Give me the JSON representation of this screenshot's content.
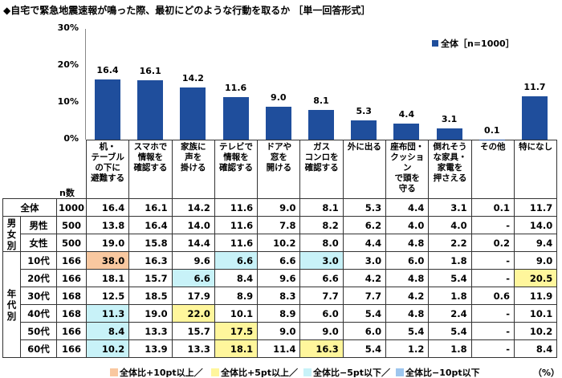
{
  "title": "◆自宅で緊急地震速報が鳴った際、最初にどのような行動を取るか ［単一回答形式］",
  "chart_data": {
    "type": "bar",
    "categories": [
      "机・テーブルの下に避難する",
      "スマホで情報を確認する",
      "家族に声を掛ける",
      "テレビで情報を確認する",
      "ドアや窓を開ける",
      "ガスコンロを確認する",
      "外に出る",
      "座布団・クッションで頭を守る",
      "倒れそうな家具・家電を押さえる",
      "その他",
      "特になし"
    ],
    "series": [
      {
        "name": "全体［n=1000］",
        "values": [
          16.4,
          16.1,
          14.2,
          11.6,
          9.0,
          8.1,
          5.3,
          4.4,
          3.1,
          0.1,
          11.7
        ],
        "color": "#1f4e9c"
      }
    ],
    "ylim": [
      0,
      30
    ],
    "yticks": [
      "0%",
      "10%",
      "20%",
      "30%"
    ],
    "ytick_values": [
      0,
      10,
      20,
      30
    ],
    "legend_position": "top-right",
    "grid": false
  },
  "table": {
    "n_header": "n数",
    "headers": [
      "机・\nテーブル\nの下に\n避難する",
      "スマホで\n情報を\n確認する",
      "家族に\n声を\n掛ける",
      "テレビで\n情報を\n確認する",
      "ドアや\n窓を\n開ける",
      "ガス\nコンロを\n確認する",
      "外に出る",
      "座布団・\nクッション\nで頭を\n守る",
      "倒れそう\nな家具・\n家電を\n押さえる",
      "その他",
      "特になし"
    ],
    "groups": [
      {
        "label": "男\n女\n別"
      },
      {
        "label": "年\n代\n別"
      }
    ],
    "rows": [
      {
        "label": "全体",
        "n": "1000",
        "values": [
          "16.4",
          "16.1",
          "14.2",
          "11.6",
          "9.0",
          "8.1",
          "5.3",
          "4.4",
          "3.1",
          "0.1",
          "11.7"
        ],
        "hl": [
          "",
          "",
          "",
          "",
          "",
          "",
          "",
          "",
          "",
          "",
          ""
        ]
      },
      {
        "label": "男性",
        "n": "500",
        "values": [
          "13.8",
          "16.4",
          "14.0",
          "11.6",
          "7.8",
          "8.2",
          "6.2",
          "4.0",
          "4.0",
          "-",
          "14.0"
        ],
        "hl": [
          "",
          "",
          "",
          "",
          "",
          "",
          "",
          "",
          "",
          "",
          ""
        ]
      },
      {
        "label": "女性",
        "n": "500",
        "values": [
          "19.0",
          "15.8",
          "14.4",
          "11.6",
          "10.2",
          "8.0",
          "4.4",
          "4.8",
          "2.2",
          "0.2",
          "9.4"
        ],
        "hl": [
          "",
          "",
          "",
          "",
          "",
          "",
          "",
          "",
          "",
          "",
          ""
        ]
      },
      {
        "label": "10代",
        "n": "166",
        "values": [
          "38.0",
          "16.3",
          "9.6",
          "6.6",
          "6.6",
          "3.0",
          "3.0",
          "6.0",
          "1.8",
          "-",
          "9.0"
        ],
        "hl": [
          "o",
          "",
          "",
          "c",
          "",
          "c",
          "",
          "",
          "",
          "",
          ""
        ]
      },
      {
        "label": "20代",
        "n": "166",
        "values": [
          "18.1",
          "15.7",
          "6.6",
          "8.4",
          "9.6",
          "6.6",
          "4.2",
          "4.8",
          "5.4",
          "-",
          "20.5"
        ],
        "hl": [
          "",
          "",
          "c",
          "",
          "",
          "",
          "",
          "",
          "",
          "",
          "y"
        ]
      },
      {
        "label": "30代",
        "n": "168",
        "values": [
          "12.5",
          "18.5",
          "17.9",
          "8.9",
          "8.3",
          "7.7",
          "7.7",
          "4.2",
          "1.8",
          "0.6",
          "11.9"
        ],
        "hl": [
          "",
          "",
          "",
          "",
          "",
          "",
          "",
          "",
          "",
          "",
          ""
        ]
      },
      {
        "label": "40代",
        "n": "168",
        "values": [
          "11.3",
          "19.0",
          "22.0",
          "10.1",
          "8.9",
          "6.0",
          "5.4",
          "4.8",
          "2.4",
          "-",
          "10.1"
        ],
        "hl": [
          "c",
          "",
          "y",
          "",
          "",
          "",
          "",
          "",
          "",
          "",
          ""
        ]
      },
      {
        "label": "50代",
        "n": "166",
        "values": [
          "8.4",
          "13.3",
          "15.7",
          "17.5",
          "9.0",
          "9.0",
          "6.0",
          "5.4",
          "5.4",
          "-",
          "10.2"
        ],
        "hl": [
          "c",
          "",
          "",
          "y",
          "",
          "",
          "",
          "",
          "",
          "",
          ""
        ]
      },
      {
        "label": "60代",
        "n": "166",
        "values": [
          "10.2",
          "13.9",
          "13.3",
          "18.1",
          "11.4",
          "16.3",
          "5.4",
          "1.2",
          "1.8",
          "-",
          "8.4"
        ],
        "hl": [
          "c",
          "",
          "",
          "y",
          "",
          "y",
          "",
          "",
          "",
          "",
          ""
        ]
      }
    ]
  },
  "footnote": {
    "items": [
      {
        "label": "全体比+10pt以上／",
        "color": "#f9c8a0"
      },
      {
        "label": "全体比+5pt以上／",
        "color": "#fff69c"
      },
      {
        "label": "全体比−5pt以下／",
        "color": "#c8f2f8"
      },
      {
        "label": "全体比−10pt以下",
        "color": "#9ec6ee"
      }
    ],
    "unit": "（%）"
  }
}
